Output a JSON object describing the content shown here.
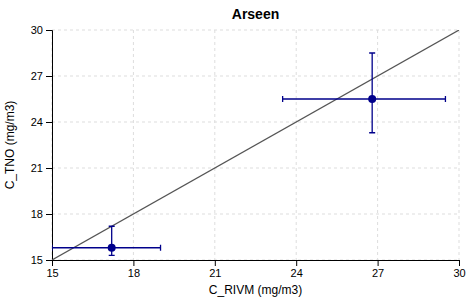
{
  "chart_data": {
    "type": "scatter",
    "title": "Arseen",
    "xlabel": "C_RIVM (mg/m3)",
    "ylabel": "C_TNO (mg/m3)",
    "xlim": [
      15,
      30
    ],
    "ylim": [
      15,
      30
    ],
    "xticks": [
      15,
      18,
      21,
      24,
      27,
      30
    ],
    "yticks": [
      15,
      18,
      21,
      24,
      27,
      30
    ],
    "grid": true,
    "series": [
      {
        "type": "line",
        "color": "#555555",
        "x": [
          15,
          30
        ],
        "values": [
          15,
          30
        ]
      },
      {
        "type": "scatter",
        "color": "#00008B",
        "marker": "circle",
        "x": [
          17.2,
          26.8
        ],
        "values": [
          15.8,
          25.5
        ],
        "x_error_minus": [
          2.2,
          3.3
        ],
        "x_error_plus": [
          1.8,
          2.7
        ],
        "y_error_minus": [
          0.5,
          2.2
        ],
        "y_error_plus": [
          1.4,
          3.0
        ]
      }
    ]
  }
}
